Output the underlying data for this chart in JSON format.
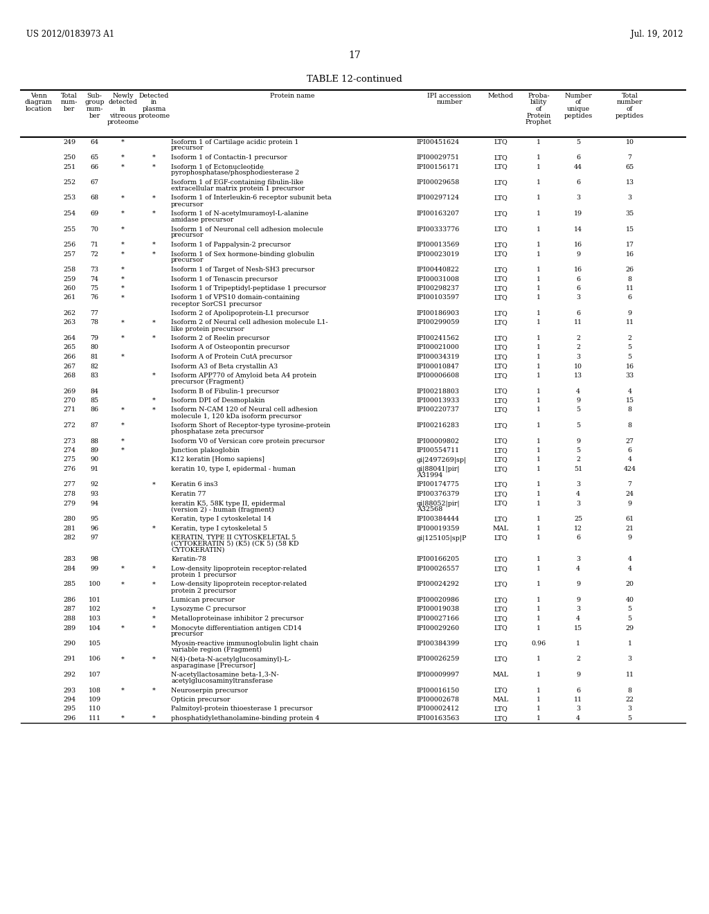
{
  "header_left": "US 2012/0183973 A1",
  "header_right": "Jul. 19, 2012",
  "page_number": "17",
  "table_title": "TABLE 12-continued",
  "rows": [
    [
      "249",
      "64",
      "*",
      "",
      "Isoform 1 of Cartilage acidic protein 1\nprecursor",
      "IPI00451624",
      "LTQ",
      "1",
      "5",
      "10"
    ],
    [
      "250",
      "65",
      "*",
      "*",
      "Isoform 1 of Contactin-1 precursor",
      "IPI00029751",
      "LTQ",
      "1",
      "6",
      "7"
    ],
    [
      "251",
      "66",
      "*",
      "*",
      "Isoform 1 of Ectonucleotide\npyrophosphatase/phosphodiesterase 2",
      "IPI00156171",
      "LTQ",
      "1",
      "44",
      "65"
    ],
    [
      "252",
      "67",
      "",
      "",
      "Isoform 1 of EGF-containing fibulin-like\nextracellular matrix protein 1 precursor",
      "IPI00029658",
      "LTQ",
      "1",
      "6",
      "13"
    ],
    [
      "253",
      "68",
      "*",
      "*",
      "Isoform 1 of Interleukin-6 receptor subunit beta\nprecursor",
      "IPI00297124",
      "LTQ",
      "1",
      "3",
      "3"
    ],
    [
      "254",
      "69",
      "*",
      "*",
      "Isoform 1 of N-acetylmuramoyl-L-alanine\namidase precursor",
      "IPI00163207",
      "LTQ",
      "1",
      "19",
      "35"
    ],
    [
      "255",
      "70",
      "*",
      "",
      "Isoform 1 of Neuronal cell adhesion molecule\nprecursor",
      "IPI00333776",
      "LTQ",
      "1",
      "14",
      "15"
    ],
    [
      "256",
      "71",
      "*",
      "*",
      "Isoform 1 of Pappalysin-2 precursor",
      "IPI00013569",
      "LTQ",
      "1",
      "16",
      "17"
    ],
    [
      "257",
      "72",
      "*",
      "*",
      "Isoform 1 of Sex hormone-binding globulin\nprecursor",
      "IPI00023019",
      "LTQ",
      "1",
      "9",
      "16"
    ],
    [
      "258",
      "73",
      "*",
      "",
      "Isoform 1 of Target of Nesh-SH3 precursor",
      "IPI00440822",
      "LTQ",
      "1",
      "16",
      "26"
    ],
    [
      "259",
      "74",
      "*",
      "",
      "Isoform 1 of Tenascin precursor",
      "IPI00031008",
      "LTQ",
      "1",
      "6",
      "8"
    ],
    [
      "260",
      "75",
      "*",
      "",
      "Isoform 1 of Tripeptidyl-peptidase 1 precursor",
      "IPI00298237",
      "LTQ",
      "1",
      "6",
      "11"
    ],
    [
      "261",
      "76",
      "*",
      "",
      "Isoform 1 of VPS10 domain-containing\nreceptor SorCS1 precursor",
      "IPI00103597",
      "LTQ",
      "1",
      "3",
      "6"
    ],
    [
      "262",
      "77",
      "",
      "",
      "Isoform 2 of Apolipoprotein-L1 precursor",
      "IPI00186903",
      "LTQ",
      "1",
      "6",
      "9"
    ],
    [
      "263",
      "78",
      "*",
      "*",
      "Isoform 2 of Neural cell adhesion molecule L1-\nlike protein precursor",
      "IPI00299059",
      "LTQ",
      "1",
      "11",
      "11"
    ],
    [
      "264",
      "79",
      "*",
      "*",
      "Isoform 2 of Reelin precursor",
      "IPI00241562",
      "LTQ",
      "1",
      "2",
      "2"
    ],
    [
      "265",
      "80",
      "",
      "",
      "Isoform A of Osteopontin precursor",
      "IPI00021000",
      "LTQ",
      "1",
      "2",
      "5"
    ],
    [
      "266",
      "81",
      "*",
      "",
      "Isoform A of Protein CutA precursor",
      "IPI00034319",
      "LTQ",
      "1",
      "3",
      "5"
    ],
    [
      "267",
      "82",
      "",
      "",
      "Isoform A3 of Beta crystallin A3",
      "IPI00010847",
      "LTQ",
      "1",
      "10",
      "16"
    ],
    [
      "268",
      "83",
      "",
      "*",
      "Isoform APP770 of Amyloid beta A4 protein\nprecursor (Fragment)",
      "IPI00006608",
      "LTQ",
      "1",
      "13",
      "33"
    ],
    [
      "269",
      "84",
      "",
      "",
      "Isoform B of Fibulin-1 precursor",
      "IPI00218803",
      "LTQ",
      "1",
      "4",
      "4"
    ],
    [
      "270",
      "85",
      "",
      "*",
      "Isoform DPI of Desmoplakin",
      "IPI00013933",
      "LTQ",
      "1",
      "9",
      "15"
    ],
    [
      "271",
      "86",
      "*",
      "*",
      "Isoform N-CAM 120 of Neural cell adhesion\nmolecule 1, 120 kDa isoform precursor",
      "IPI00220737",
      "LTQ",
      "1",
      "5",
      "8"
    ],
    [
      "272",
      "87",
      "*",
      "",
      "Isoform Short of Receptor-type tyrosine-protein\nphosphatase zeta precursor",
      "IPI00216283",
      "LTQ",
      "1",
      "5",
      "8"
    ],
    [
      "273",
      "88",
      "*",
      "",
      "Isoform V0 of Versican core protein precursor",
      "IPI00009802",
      "LTQ",
      "1",
      "9",
      "27"
    ],
    [
      "274",
      "89",
      "*",
      "",
      "Junction plakoglobin",
      "IPI00554711",
      "LTQ",
      "1",
      "5",
      "6"
    ],
    [
      "275",
      "90",
      "",
      "",
      "K12 keratin [Homo sapiens]",
      "gi|2497269|sp|",
      "LTQ",
      "1",
      "2",
      "4"
    ],
    [
      "276",
      "91",
      "",
      "",
      "keratin 10, type I, epidermal - human",
      "gi|88041|pir|\nA31994",
      "LTQ",
      "1",
      "51",
      "424"
    ],
    [
      "277",
      "92",
      "",
      "*",
      "Keratin 6 ins3",
      "IPI00174775",
      "LTQ",
      "1",
      "3",
      "7"
    ],
    [
      "278",
      "93",
      "",
      "",
      "Keratin 77",
      "IPI00376379",
      "LTQ",
      "1",
      "4",
      "24"
    ],
    [
      "279",
      "94",
      "",
      "",
      "keratin K5, 58K type II, epidermal\n(version 2) - human (fragment)",
      "gi|88052|pir|\nA32568",
      "LTQ",
      "1",
      "3",
      "9"
    ],
    [
      "280",
      "95",
      "",
      "",
      "Keratin, type I cytoskeletal 14",
      "IPI00384444",
      "LTQ",
      "1",
      "25",
      "61"
    ],
    [
      "281",
      "96",
      "",
      "*",
      "Keratin, type I cytoskeletal 5",
      "IPI00019359",
      "MAL",
      "1",
      "12",
      "21"
    ],
    [
      "282",
      "97",
      "",
      "",
      "KERATIN, TYPE II CYTOSKELETAL 5\n(CYTOKERATIN 5) (K5) (CK 5) (58 KD\nCYTOKERATIN)",
      "gi|125105|sp|P",
      "LTQ",
      "1",
      "6",
      "9"
    ],
    [
      "283",
      "98",
      "",
      "",
      "Keratin-78",
      "IPI00166205",
      "LTQ",
      "1",
      "3",
      "4"
    ],
    [
      "284",
      "99",
      "*",
      "*",
      "Low-density lipoprotein receptor-related\nprotein 1 precursor",
      "IPI00026557",
      "LTQ",
      "1",
      "4",
      "4"
    ],
    [
      "285",
      "100",
      "*",
      "*",
      "Low-density lipoprotein receptor-related\nprotein 2 precursor",
      "IPI00024292",
      "LTQ",
      "1",
      "9",
      "20"
    ],
    [
      "286",
      "101",
      "",
      "",
      "Lumican precursor",
      "IPI00020986",
      "LTQ",
      "1",
      "9",
      "40"
    ],
    [
      "287",
      "102",
      "",
      "*",
      "Lysozyme C precursor",
      "IPI00019038",
      "LTQ",
      "1",
      "3",
      "5"
    ],
    [
      "288",
      "103",
      "",
      "*",
      "Metalloproteinase inhibitor 2 precursor",
      "IPI00027166",
      "LTQ",
      "1",
      "4",
      "5"
    ],
    [
      "289",
      "104",
      "*",
      "*",
      "Monocyte differentiation antigen CD14\nprecursor",
      "IPI00029260",
      "LTQ",
      "1",
      "15",
      "29"
    ],
    [
      "290",
      "105",
      "",
      "",
      "Myosin-reactive immunoglobulin light chain\nvariable region (Fragment)",
      "IPI00384399",
      "LTQ",
      "0.96",
      "1",
      "1"
    ],
    [
      "291",
      "106",
      "*",
      "*",
      "N(4)-(beta-N-acetylglucosaminyl)-L-\nasparaginase [Precursor]",
      "IPI00026259",
      "LTQ",
      "1",
      "2",
      "3"
    ],
    [
      "292",
      "107",
      "",
      "",
      "N-acetyllactosamine beta-1,3-N-\nacetylglucosaminyltransferase",
      "IPI00009997",
      "MAL",
      "1",
      "9",
      "11"
    ],
    [
      "293",
      "108",
      "*",
      "*",
      "Neuroserpin precursor",
      "IPI00016150",
      "LTQ",
      "1",
      "6",
      "8"
    ],
    [
      "294",
      "109",
      "",
      "",
      "Opticin precursor",
      "IPI00002678",
      "MAL",
      "1",
      "11",
      "22"
    ],
    [
      "295",
      "110",
      "",
      "",
      "Palmitoyl-protein thioesterase 1 precursor",
      "IPI00002412",
      "LTQ",
      "1",
      "3",
      "3"
    ],
    [
      "296",
      "111",
      "*",
      "*",
      "phosphatidylethanolamine-binding protein 4",
      "IPI00163563",
      "LTQ",
      "1",
      "4",
      "5"
    ]
  ],
  "col_headers_line1": [
    "Venn",
    "Total",
    "Sub-",
    "Newly",
    "Detected",
    "",
    "IPI accession",
    "",
    "Proba-",
    "Number",
    "Total"
  ],
  "col_headers_line2": [
    "diagram",
    "num-",
    "group",
    "detected",
    "in",
    "",
    "number",
    "",
    "bility",
    "of",
    "number"
  ],
  "col_headers_line3": [
    "location",
    "ber",
    "num-",
    "in",
    "plasma",
    "Protein name",
    "",
    "Method",
    "of",
    "unique",
    "of"
  ],
  "col_headers_line4": [
    "",
    "",
    "ber",
    "vitreous",
    "proteome",
    "",
    "",
    "",
    "Protein",
    "peptides",
    "peptides"
  ],
  "col_headers_line5": [
    "",
    "",
    "",
    "proteome",
    "",
    "",
    "",
    "",
    "Prophet",
    "",
    ""
  ]
}
